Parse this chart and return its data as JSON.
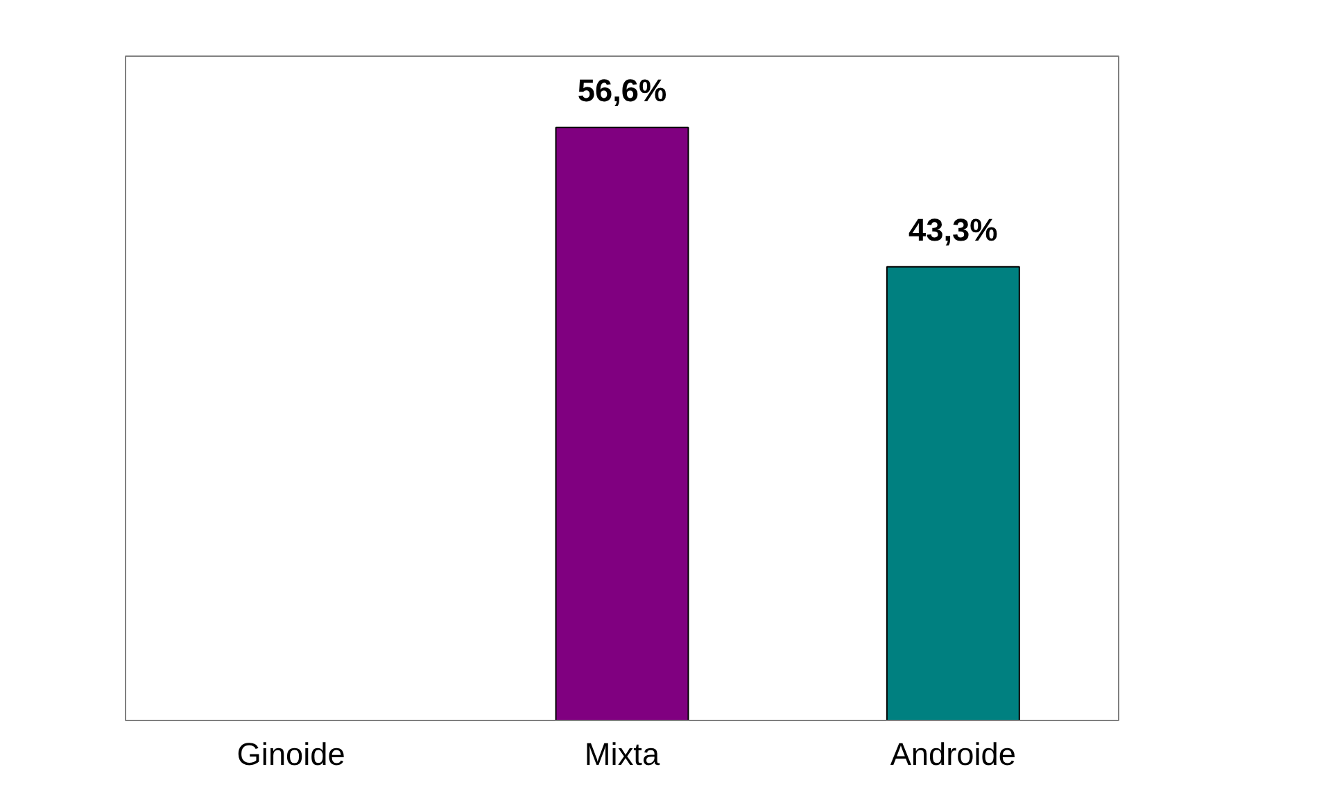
{
  "chart_data": {
    "type": "bar",
    "categories": [
      "Ginoide",
      "Mixta",
      "Androide"
    ],
    "values": [
      null,
      56.6,
      43.3
    ],
    "colors": [
      "#800080",
      "#800080",
      "#008080"
    ],
    "value_labels": [
      null,
      "56,6%",
      "43,3%"
    ]
  }
}
